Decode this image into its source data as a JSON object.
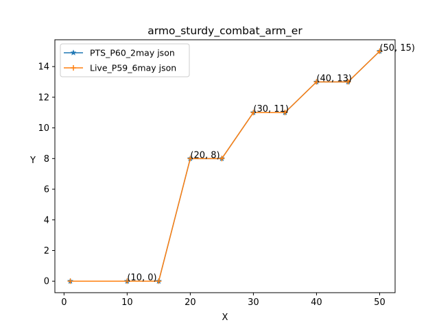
{
  "chart_data": {
    "type": "line",
    "title": "armo_sturdy_combat_arm_er",
    "xlabel": "X",
    "ylabel": "Y",
    "xlim": [
      -1.45,
      52.45
    ],
    "ylim": [
      -0.75,
      15.75
    ],
    "xticks": [
      0,
      10,
      20,
      30,
      40,
      50
    ],
    "yticks": [
      0,
      2,
      4,
      6,
      8,
      10,
      12,
      14
    ],
    "grid": false,
    "legend": "upper-left",
    "series": [
      {
        "name": "PTS_P60_2may json",
        "color": "#1f77b4",
        "marker": "star",
        "x": [
          1,
          10,
          15,
          20,
          25,
          30,
          35,
          40,
          45,
          50
        ],
        "y": [
          0,
          0,
          0,
          8,
          8,
          11,
          11,
          13,
          13,
          15
        ]
      },
      {
        "name": "Live_P59_6may json",
        "color": "#ff7f0e",
        "marker": "plus",
        "x": [
          1,
          10,
          15,
          20,
          25,
          30,
          35,
          40,
          45,
          50
        ],
        "y": [
          0,
          0,
          0,
          8,
          8,
          11,
          11,
          13,
          13,
          15
        ]
      }
    ],
    "annotations": [
      {
        "x": 10,
        "y": 0,
        "text": "(10, 0)"
      },
      {
        "x": 20,
        "y": 8,
        "text": "(20, 8)"
      },
      {
        "x": 30,
        "y": 11,
        "text": "(30, 11)"
      },
      {
        "x": 40,
        "y": 13,
        "text": "(40, 13)"
      },
      {
        "x": 50,
        "y": 15,
        "text": "(50, 15)"
      }
    ]
  }
}
